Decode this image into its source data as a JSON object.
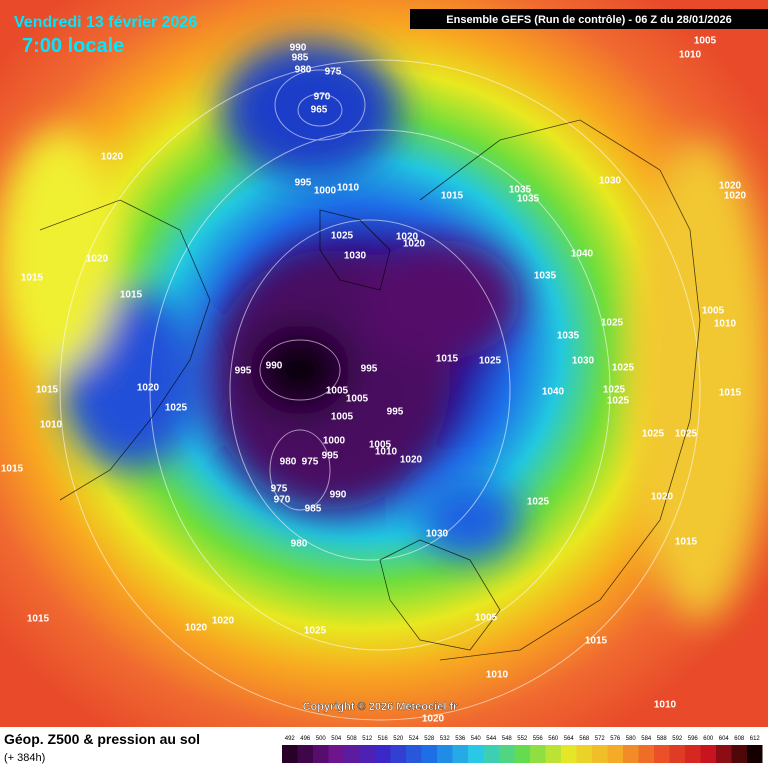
{
  "header": {
    "date": "Vendredi 13 février 2026",
    "time": "7:00 locale",
    "run": "Ensemble GEFS  (Run de contrôle)  -  06 Z du 28/01/2026"
  },
  "map": {
    "isobar_labels": [
      "990",
      "985",
      "980",
      "975",
      "970",
      "965",
      "1005",
      "1010",
      "1020",
      "995",
      "1000",
      "1010",
      "1015",
      "1035",
      "1035",
      "1030",
      "1020",
      "1020",
      "1025",
      "1020",
      "1020",
      "1030",
      "1040",
      "1035",
      "1020",
      "1015",
      "1015",
      "1005",
      "1010",
      "1025",
      "1035",
      "990",
      "995",
      "995",
      "1015",
      "1025",
      "1030",
      "1025",
      "1005",
      "1005",
      "1040",
      "1025",
      "1025",
      "1015",
      "1015",
      "1020",
      "1025",
      "1010",
      "1005",
      "995",
      "1000",
      "1005",
      "1010",
      "995",
      "1020",
      "980",
      "975",
      "1025",
      "1025",
      "1015",
      "975",
      "970",
      "990",
      "985",
      "1025",
      "1020",
      "1030",
      "980",
      "1015",
      "1015",
      "1020",
      "1020",
      "1025",
      "1005",
      "1015",
      "1010",
      "1010",
      "1020"
    ],
    "copyright": "Copyright © 2026 Meteociel.fr"
  },
  "footer": {
    "title": "Géop. Z500 & pression au sol",
    "lead_time": "(+ 384h)",
    "scale": [
      492,
      496,
      500,
      504,
      508,
      512,
      516,
      520,
      524,
      528,
      532,
      536,
      540,
      544,
      548,
      552,
      556,
      560,
      564,
      568,
      572,
      576,
      580,
      584,
      588,
      592,
      596,
      600,
      604,
      608,
      612
    ]
  }
}
